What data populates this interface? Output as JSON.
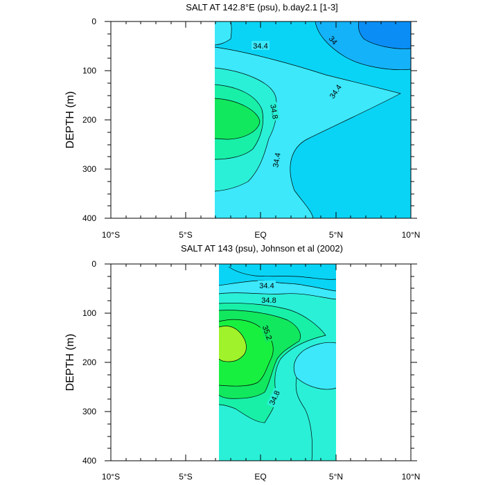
{
  "colors": {
    "sal_33_8": "#0a8ef5",
    "sal_34_0": "#14b2f8",
    "sal_34_2": "#0ad4f5",
    "sal_34_4": "#3ce8fa",
    "sal_34_6": "#2af0d8",
    "sal_34_8": "#18f0a8",
    "sal_35_0": "#12e85e",
    "sal_35_2": "#18f040",
    "sal_35_4": "#a0f22a",
    "contour_line": "#000000"
  },
  "chart_data": [
    {
      "type": "heatmap",
      "title": "SALT AT 142.8°E (psu), b.day2.1 [1-3]",
      "ylabel": "DEPTH (m)",
      "xlabel": "",
      "xlim": [
        -10,
        10
      ],
      "ylim": [
        400,
        0
      ],
      "x_ticks": [
        "10°S",
        "5°S",
        "EQ",
        "5°N",
        "10°N"
      ],
      "y_ticks": [
        "0",
        "100",
        "200",
        "300",
        "400"
      ],
      "data_lon_range": [
        "3.2°S",
        "10°N"
      ],
      "contour_labels": [
        "34.4",
        "34",
        "34.4",
        "34.8",
        "34.4"
      ]
    },
    {
      "type": "heatmap",
      "title": "SALT AT 143 (psu), Johnson et al (2002)",
      "ylabel": "DEPTH (m)",
      "xlabel": "",
      "xlim": [
        -10,
        10
      ],
      "ylim": [
        400,
        0
      ],
      "x_ticks": [
        "10°S",
        "5°S",
        "EQ",
        "5°N",
        "10°N"
      ],
      "y_ticks": [
        "0",
        "100",
        "200",
        "300",
        "400"
      ],
      "data_lon_range": [
        "2.8°S",
        "5°N"
      ],
      "contour_labels": [
        "34.4",
        "34.8",
        "35.2",
        "34.8"
      ]
    }
  ]
}
